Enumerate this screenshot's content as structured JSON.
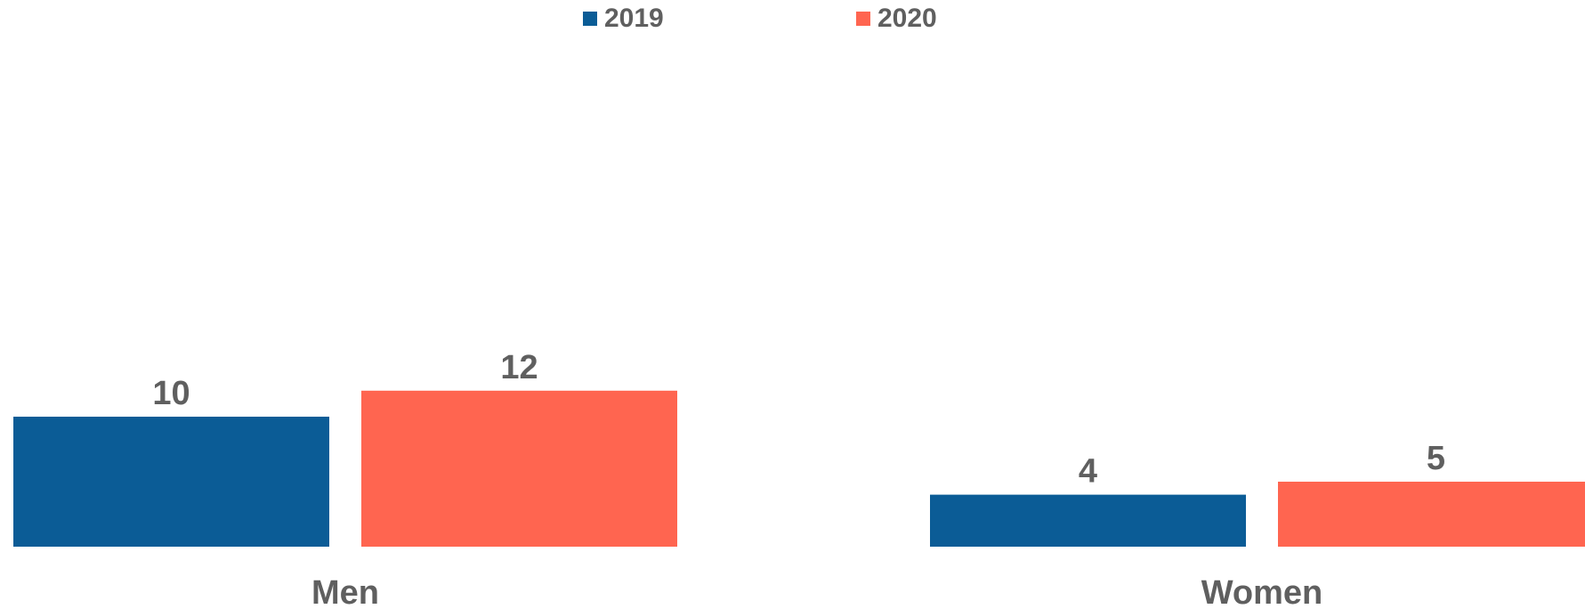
{
  "chart_data": {
    "type": "bar",
    "categories": [
      "Men",
      "Women"
    ],
    "series": [
      {
        "name": "2019",
        "values": [
          10,
          4
        ],
        "color": "#0b5c96"
      },
      {
        "name": "2020",
        "values": [
          12,
          5
        ],
        "color": "#ff6550"
      }
    ],
    "title": "",
    "xlabel": "",
    "ylabel": "",
    "ylim": [
      0,
      40
    ],
    "grid": false,
    "legend_position": "top-center",
    "data_labels": true
  }
}
